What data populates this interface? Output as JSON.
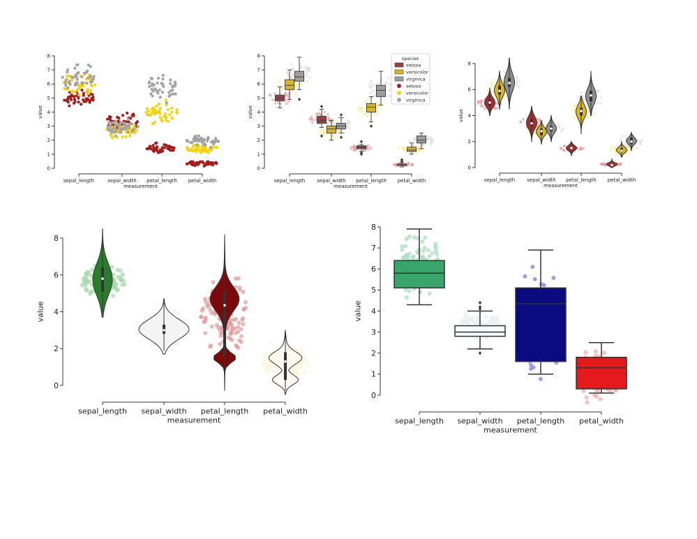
{
  "colors": {
    "setosa": "#a31d1d",
    "versicolor": "#f5d312",
    "virginica": "#a3a3a3",
    "green": "#2a7d2a",
    "seagreen": "#3aa56b",
    "navy": "#0b0b80",
    "red": "#e41a1c",
    "dark_red": "#7a0a0a"
  },
  "chart_data": [
    {
      "type": "scatter",
      "variant": "swarm",
      "xlabel": "measurement",
      "ylabel": "value",
      "categories": [
        "sepal_length",
        "sepal_width",
        "petal_length",
        "petal_width"
      ],
      "ylim": [
        0,
        8
      ],
      "yticks": [
        "0",
        "1",
        "2",
        "3",
        "4",
        "5",
        "6",
        "7",
        "8"
      ],
      "series": [
        {
          "species": "setosa",
          "ranges": [
            [
              4.3,
              5.8
            ],
            [
              2.3,
              4.4
            ],
            [
              1.0,
              1.9
            ],
            [
              0.1,
              0.6
            ]
          ]
        },
        {
          "species": "versicolor",
          "ranges": [
            [
              4.9,
              7.0
            ],
            [
              2.0,
              3.4
            ],
            [
              3.0,
              5.1
            ],
            [
              1.0,
              1.8
            ]
          ]
        },
        {
          "species": "virginica",
          "ranges": [
            [
              4.9,
              7.9
            ],
            [
              2.2,
              3.8
            ],
            [
              4.5,
              6.9
            ],
            [
              1.4,
              2.5
            ]
          ]
        }
      ]
    },
    {
      "type": "bar",
      "variant": "boxplot_with_swarm",
      "xlabel": "measurement",
      "ylabel": "value",
      "categories": [
        "sepal_length",
        "sepal_width",
        "petal_length",
        "petal_width"
      ],
      "ylim": [
        0,
        8
      ],
      "yticks": [
        "0",
        "1",
        "2",
        "3",
        "4",
        "5",
        "6",
        "7",
        "8"
      ],
      "legend": {
        "title": "species",
        "placement": "top-right",
        "entries": [
          "setosa",
          "versicolor",
          "virginica",
          "setosa",
          "versicolor",
          "virginica"
        ]
      },
      "series": [
        {
          "species": "setosa",
          "boxes": [
            {
              "q1": 4.8,
              "median": 5.0,
              "q3": 5.2,
              "lo": 4.3,
              "hi": 5.8,
              "out": []
            },
            {
              "q1": 3.2,
              "median": 3.4,
              "q3": 3.7,
              "lo": 2.9,
              "hi": 4.2,
              "out": [
                4.4,
                2.3
              ]
            },
            {
              "q1": 1.4,
              "median": 1.5,
              "q3": 1.6,
              "lo": 1.2,
              "hi": 1.7,
              "out": [
                1.9,
                1.1,
                1.0
              ]
            },
            {
              "q1": 0.2,
              "median": 0.2,
              "q3": 0.3,
              "lo": 0.1,
              "hi": 0.4,
              "out": [
                0.5,
                0.6
              ]
            }
          ]
        },
        {
          "species": "versicolor",
          "boxes": [
            {
              "q1": 5.6,
              "median": 5.9,
              "q3": 6.3,
              "lo": 4.9,
              "hi": 7.0,
              "out": []
            },
            {
              "q1": 2.5,
              "median": 2.8,
              "q3": 3.0,
              "lo": 2.0,
              "hi": 3.4,
              "out": []
            },
            {
              "q1": 4.0,
              "median": 4.35,
              "q3": 4.6,
              "lo": 3.3,
              "hi": 5.1,
              "out": [
                3.0
              ]
            },
            {
              "q1": 1.2,
              "median": 1.3,
              "q3": 1.5,
              "lo": 1.0,
              "hi": 1.8,
              "out": []
            }
          ]
        },
        {
          "species": "virginica",
          "boxes": [
            {
              "q1": 6.2,
              "median": 6.5,
              "q3": 6.9,
              "lo": 5.6,
              "hi": 7.9,
              "out": [
                4.9
              ]
            },
            {
              "q1": 2.8,
              "median": 3.0,
              "q3": 3.2,
              "lo": 2.5,
              "hi": 3.6,
              "out": [
                3.8,
                2.2
              ]
            },
            {
              "q1": 5.1,
              "median": 5.55,
              "q3": 5.9,
              "lo": 4.5,
              "hi": 6.9,
              "out": []
            },
            {
              "q1": 1.8,
              "median": 2.0,
              "q3": 2.3,
              "lo": 1.4,
              "hi": 2.5,
              "out": []
            }
          ]
        }
      ]
    },
    {
      "type": "area",
      "variant": "violin_with_swarm",
      "xlabel": "measurement",
      "ylabel": "value",
      "categories": [
        "sepal_length",
        "sepal_width",
        "petal_length",
        "petal_width"
      ],
      "ylim": [
        0,
        8
      ],
      "yticks": [
        "0",
        "2",
        "4",
        "6",
        "8"
      ],
      "series": [
        {
          "species": "setosa",
          "violins": [
            {
              "lo": 4.0,
              "hi": 6.1,
              "q1": 4.8,
              "median": 5.0,
              "q3": 5.2
            },
            {
              "lo": 2.0,
              "hi": 4.7,
              "q1": 3.2,
              "median": 3.4,
              "q3": 3.7
            },
            {
              "lo": 0.9,
              "hi": 2.0,
              "q1": 1.4,
              "median": 1.5,
              "q3": 1.6
            },
            {
              "lo": 0.0,
              "hi": 0.7,
              "q1": 0.2,
              "median": 0.2,
              "q3": 0.3
            }
          ]
        },
        {
          "species": "versicolor",
          "violins": [
            {
              "lo": 4.5,
              "hi": 7.4,
              "q1": 5.6,
              "median": 5.9,
              "q3": 6.3
            },
            {
              "lo": 1.8,
              "hi": 3.6,
              "q1": 2.5,
              "median": 2.8,
              "q3": 3.0
            },
            {
              "lo": 2.6,
              "hi": 5.5,
              "q1": 4.0,
              "median": 4.35,
              "q3": 4.6
            },
            {
              "lo": 0.8,
              "hi": 2.0,
              "q1": 1.2,
              "median": 1.3,
              "q3": 1.5
            }
          ]
        },
        {
          "species": "virginica",
          "violins": [
            {
              "lo": 4.5,
              "hi": 8.4,
              "q1": 6.2,
              "median": 6.5,
              "q3": 6.9
            },
            {
              "lo": 2.0,
              "hi": 4.0,
              "q1": 2.8,
              "median": 3.0,
              "q3": 3.2
            },
            {
              "lo": 4.0,
              "hi": 7.4,
              "q1": 5.1,
              "median": 5.55,
              "q3": 5.9
            },
            {
              "lo": 1.3,
              "hi": 2.7,
              "q1": 1.8,
              "median": 2.0,
              "q3": 2.3
            }
          ]
        }
      ]
    },
    {
      "type": "area",
      "variant": "violin_with_swarm",
      "xlabel": "measurement",
      "ylabel": "value",
      "categories": [
        "sepal_length",
        "sepal_width",
        "petal_length",
        "petal_width"
      ],
      "ylim": [
        -0.5,
        8.5
      ],
      "yticks": [
        "0",
        "2",
        "4",
        "6",
        "8"
      ],
      "violins": [
        {
          "fill": "#2a7d2a",
          "points": "#a8d8a8",
          "lo": 3.7,
          "hi": 8.5,
          "q1": 5.1,
          "median": 5.8,
          "q3": 6.4
        },
        {
          "fill": "#f4f4f4",
          "points": "#eeeeee",
          "lo": 1.7,
          "hi": 4.7,
          "q1": 2.8,
          "median": 3.0,
          "q3": 3.3
        },
        {
          "fill": "#7a0a0a",
          "points": "#e09a9a",
          "lo": -0.3,
          "hi": 8.2,
          "q1": 1.6,
          "median": 4.35,
          "q3": 5.1
        },
        {
          "fill": "#fffbf2",
          "points": "#fff3dc",
          "lo": -0.5,
          "hi": 3.0,
          "q1": 0.3,
          "median": 1.3,
          "q3": 1.8
        }
      ]
    },
    {
      "type": "bar",
      "variant": "boxplot_with_swarm",
      "xlabel": "measurement",
      "ylabel": "value",
      "categories": [
        "sepal_length",
        "sepal_width",
        "petal_length",
        "petal_width"
      ],
      "ylim": [
        0,
        8
      ],
      "yticks": [
        "0",
        "1",
        "2",
        "3",
        "4",
        "5",
        "6",
        "7",
        "8"
      ],
      "boxes": [
        {
          "fill": "#3aa56b",
          "points": "#a9dfc0",
          "q1": 5.1,
          "median": 5.8,
          "q3": 6.4,
          "lo": 4.3,
          "hi": 7.9,
          "out": []
        },
        {
          "fill": "#f6fbfb",
          "points": "#e6f0f0",
          "q1": 2.8,
          "median": 3.0,
          "q3": 3.3,
          "lo": 2.2,
          "hi": 4.0,
          "out": [
            4.4,
            4.2,
            4.1,
            2.0
          ]
        },
        {
          "fill": "#0b0b80",
          "points": "#8080d8",
          "q1": 1.6,
          "median": 4.35,
          "q3": 5.1,
          "lo": 1.0,
          "hi": 6.9,
          "out": []
        },
        {
          "fill": "#e41a1c",
          "points": "#f7a8a8",
          "q1": 0.3,
          "median": 1.3,
          "q3": 1.8,
          "lo": 0.1,
          "hi": 2.5,
          "out": []
        }
      ]
    }
  ]
}
